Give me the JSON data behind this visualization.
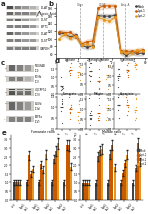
{
  "bg_color": "#ffffff",
  "wb_bg": "#e8e4e0",
  "wb_band_dark": "#555555",
  "wb_band_medium": "#888888",
  "wb_band_light": "#aaaaaa",
  "panel_a_labels": [
    "DLAT",
    "Lipoic Acid",
    "DLST",
    "LIPT1",
    "DLAT",
    "DLST",
    "GAPDH"
  ],
  "panel_b_legend": [
    "Mock",
    "Lipt-1",
    "Lipt-2"
  ],
  "panel_b_colors": [
    "#444444",
    "#c85a00",
    "#e8971e"
  ],
  "panel_b_vlines": [
    22,
    42,
    62
  ],
  "panel_b_vline_labels": [
    "Oligo",
    "CCCP",
    "Ant. A"
  ],
  "panel_c_labels": [
    "NDUFAB\n(CI)",
    "SDHb\n(CII)",
    "UQCRF51\n(CIII)",
    "BLIVd\n(CIV)",
    "ATP5a\n(CV)"
  ],
  "panel_d_titles": [
    "Lactate",
    "2-ketoglutarate",
    "Succinate",
    "Fumarate",
    "Malate",
    "Aspartate"
  ],
  "panel_d_dot_colors": [
    "#444444",
    "#c85a00",
    "#e8971e"
  ],
  "panel_e_titles": [
    "Fumarate ratio",
    "Malate ratio"
  ],
  "bar_colors": [
    "#444444",
    "#c85a00",
    "#c85a00",
    "#e8971e"
  ],
  "bar_legend": [
    "Mock",
    "Lipt-1",
    "Lipt-1",
    "Lipt-2"
  ]
}
